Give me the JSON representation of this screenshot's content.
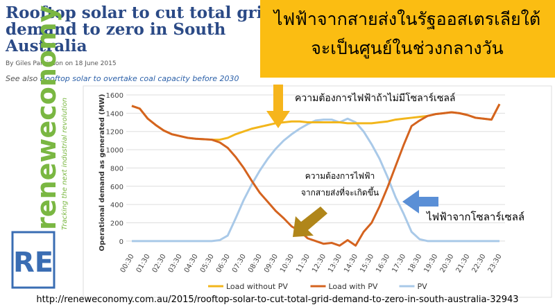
{
  "header": {
    "title_lines": [
      "Rooftop solar to cut total grid",
      "demand to zero in South",
      "Australia"
    ],
    "byline": "By Giles Parkinson on 18 June 2015",
    "see_also": {
      "prefix": "See also",
      "link": "Rooftop solar to overtake coal capacity before 2030"
    }
  },
  "banner": {
    "lines": [
      "ไฟฟ้าจากสายส่งในรัฐออสเตรเลียใต้",
      "จะเป็นศูนย์ในช่วงกลางวัน"
    ]
  },
  "logo": {
    "mark": "RE",
    "name": "reneweconomy",
    "tagline": "Tracking the next industrial revolution"
  },
  "url": "http://reneweconomy.com.au/2015/rooftop-solar-to-cut-total-grid-demand-to-zero-in-south-australia-32943",
  "chart_data": {
    "type": "line",
    "y_label": "Operational demand as generated (MW)",
    "annotations": [
      "ความต้องการไฟฟ้าถ้าไม่มีโซลาร์เซลล์",
      "ความต้องการไฟฟ้า",
      "จากสายส่งที่จะเกิดขึ้น",
      "ไฟฟ้าจากโซลาร์เซลล์"
    ],
    "categories": [
      "00:30",
      null,
      "01:30",
      null,
      "02:30",
      null,
      "03:30",
      null,
      "04:30",
      null,
      "05:30",
      null,
      "06:30",
      null,
      "07:30",
      null,
      "08:30",
      null,
      "09:30",
      null,
      "10:30",
      null,
      "11:30",
      null,
      "12:30",
      null,
      "13:30",
      null,
      "14:30",
      null,
      "15:30",
      null,
      "16:30",
      null,
      "17:30",
      null,
      "18:30",
      null,
      "19:30",
      null,
      "20:30",
      null,
      "21:30",
      null,
      "22:30",
      null,
      "23:30"
    ],
    "ylim": [
      -100,
      1600
    ],
    "yticks": [
      0,
      200,
      400,
      600,
      800,
      1000,
      1200,
      1400,
      1600
    ],
    "grid": true,
    "series": [
      {
        "name": "Load without PV",
        "color": "#f2b61c",
        "values": [
          1480,
          1450,
          1340,
          1270,
          1210,
          1170,
          1150,
          1130,
          1120,
          1115,
          1110,
          1110,
          1130,
          1170,
          1200,
          1230,
          1250,
          1270,
          1290,
          1300,
          1310,
          1310,
          1300,
          1300,
          1300,
          1300,
          1300,
          1290,
          1290,
          1290,
          1290,
          1300,
          1310,
          1330,
          1340,
          1350,
          1360,
          1370,
          1390,
          1400,
          1410,
          1400,
          1380,
          1350,
          1340,
          1330,
          1500
        ]
      },
      {
        "name": "Load with PV",
        "color": "#d4631f",
        "values": [
          1480,
          1450,
          1340,
          1270,
          1210,
          1170,
          1150,
          1130,
          1120,
          1115,
          1110,
          1080,
          1020,
          920,
          800,
          660,
          530,
          430,
          330,
          250,
          160,
          110,
          30,
          0,
          -30,
          -20,
          -50,
          10,
          -50,
          100,
          200,
          380,
          590,
          820,
          1050,
          1260,
          1320,
          1370,
          1390,
          1400,
          1410,
          1400,
          1380,
          1350,
          1340,
          1330,
          1500
        ]
      },
      {
        "name": "PV",
        "color": "#a9c9e8",
        "values": [
          0,
          0,
          0,
          0,
          0,
          0,
          0,
          0,
          0,
          0,
          0,
          10,
          60,
          250,
          450,
          620,
          770,
          900,
          1010,
          1100,
          1170,
          1230,
          1280,
          1320,
          1330,
          1330,
          1300,
          1340,
          1300,
          1200,
          1060,
          900,
          700,
          480,
          300,
          100,
          20,
          0,
          0,
          0,
          0,
          0,
          0,
          0,
          0,
          0,
          0
        ]
      }
    ]
  }
}
